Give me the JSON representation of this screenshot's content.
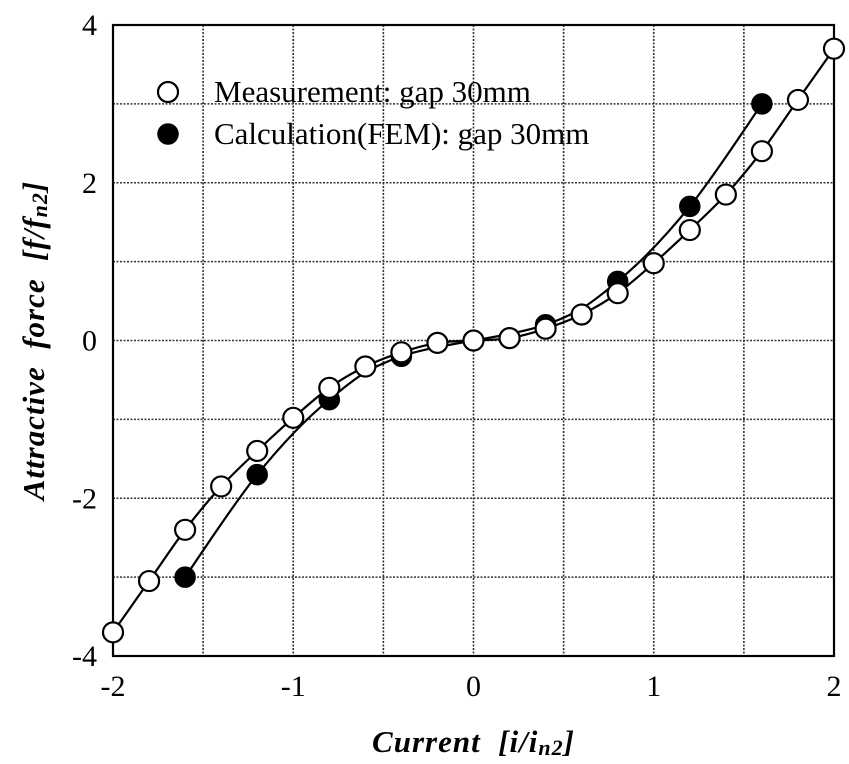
{
  "chart_data": {
    "type": "scatter",
    "title": "",
    "xlabel": "Current  [i/i",
    "xlabel_sub": "n2",
    "xlabel_end": "]",
    "ylabel": "Attractive  force  [f/f",
    "ylabel_sub": "n2",
    "ylabel_end": "]",
    "xlim": [
      -2,
      2
    ],
    "ylim": [
      -4,
      4
    ],
    "x_ticks": [
      -2,
      -1.5,
      -1,
      -0.5,
      0,
      0.5,
      1,
      1.5,
      2
    ],
    "y_ticks": [
      -4,
      -3,
      -2,
      -1,
      0,
      1,
      2,
      3,
      4
    ],
    "x_tick_labels": [
      {
        "value": -2,
        "label": "-2"
      },
      {
        "value": -1,
        "label": "-1"
      },
      {
        "value": 0,
        "label": "0"
      },
      {
        "value": 1,
        "label": "1"
      },
      {
        "value": 2,
        "label": "2"
      }
    ],
    "y_tick_labels": [
      {
        "value": -4,
        "label": "-4"
      },
      {
        "value": -2,
        "label": "-2"
      },
      {
        "value": 0,
        "label": "0"
      },
      {
        "value": 2,
        "label": "2"
      },
      {
        "value": 4,
        "label": "4"
      }
    ],
    "grid": true,
    "legend_position": "top-left",
    "series": [
      {
        "name": "Measurement: gap 30mm",
        "marker": "open-circle",
        "x": [
          -2.0,
          -1.8,
          -1.6,
          -1.4,
          -1.2,
          -1.0,
          -0.8,
          -0.6,
          -0.4,
          -0.2,
          0.0,
          0.2,
          0.4,
          0.6,
          0.8,
          1.0,
          1.2,
          1.4,
          1.6,
          1.8,
          2.0
        ],
        "y": [
          -3.7,
          -3.05,
          -2.4,
          -1.85,
          -1.4,
          -0.98,
          -0.6,
          -0.33,
          -0.15,
          -0.03,
          0.0,
          0.03,
          0.15,
          0.33,
          0.6,
          0.98,
          1.4,
          1.85,
          2.4,
          3.05,
          3.7
        ]
      },
      {
        "name": "Calculation(FEM): gap 30mm",
        "marker": "filled-circle",
        "x": [
          -1.6,
          -1.2,
          -0.8,
          -0.4,
          0.4,
          0.8,
          1.2,
          1.6
        ],
        "y": [
          -3.0,
          -1.7,
          -0.75,
          -0.2,
          0.2,
          0.75,
          1.7,
          3.0
        ]
      }
    ],
    "colors": {
      "line": "#000000",
      "open_marker_fill": "#ffffff",
      "filled_marker_fill": "#000000"
    }
  }
}
